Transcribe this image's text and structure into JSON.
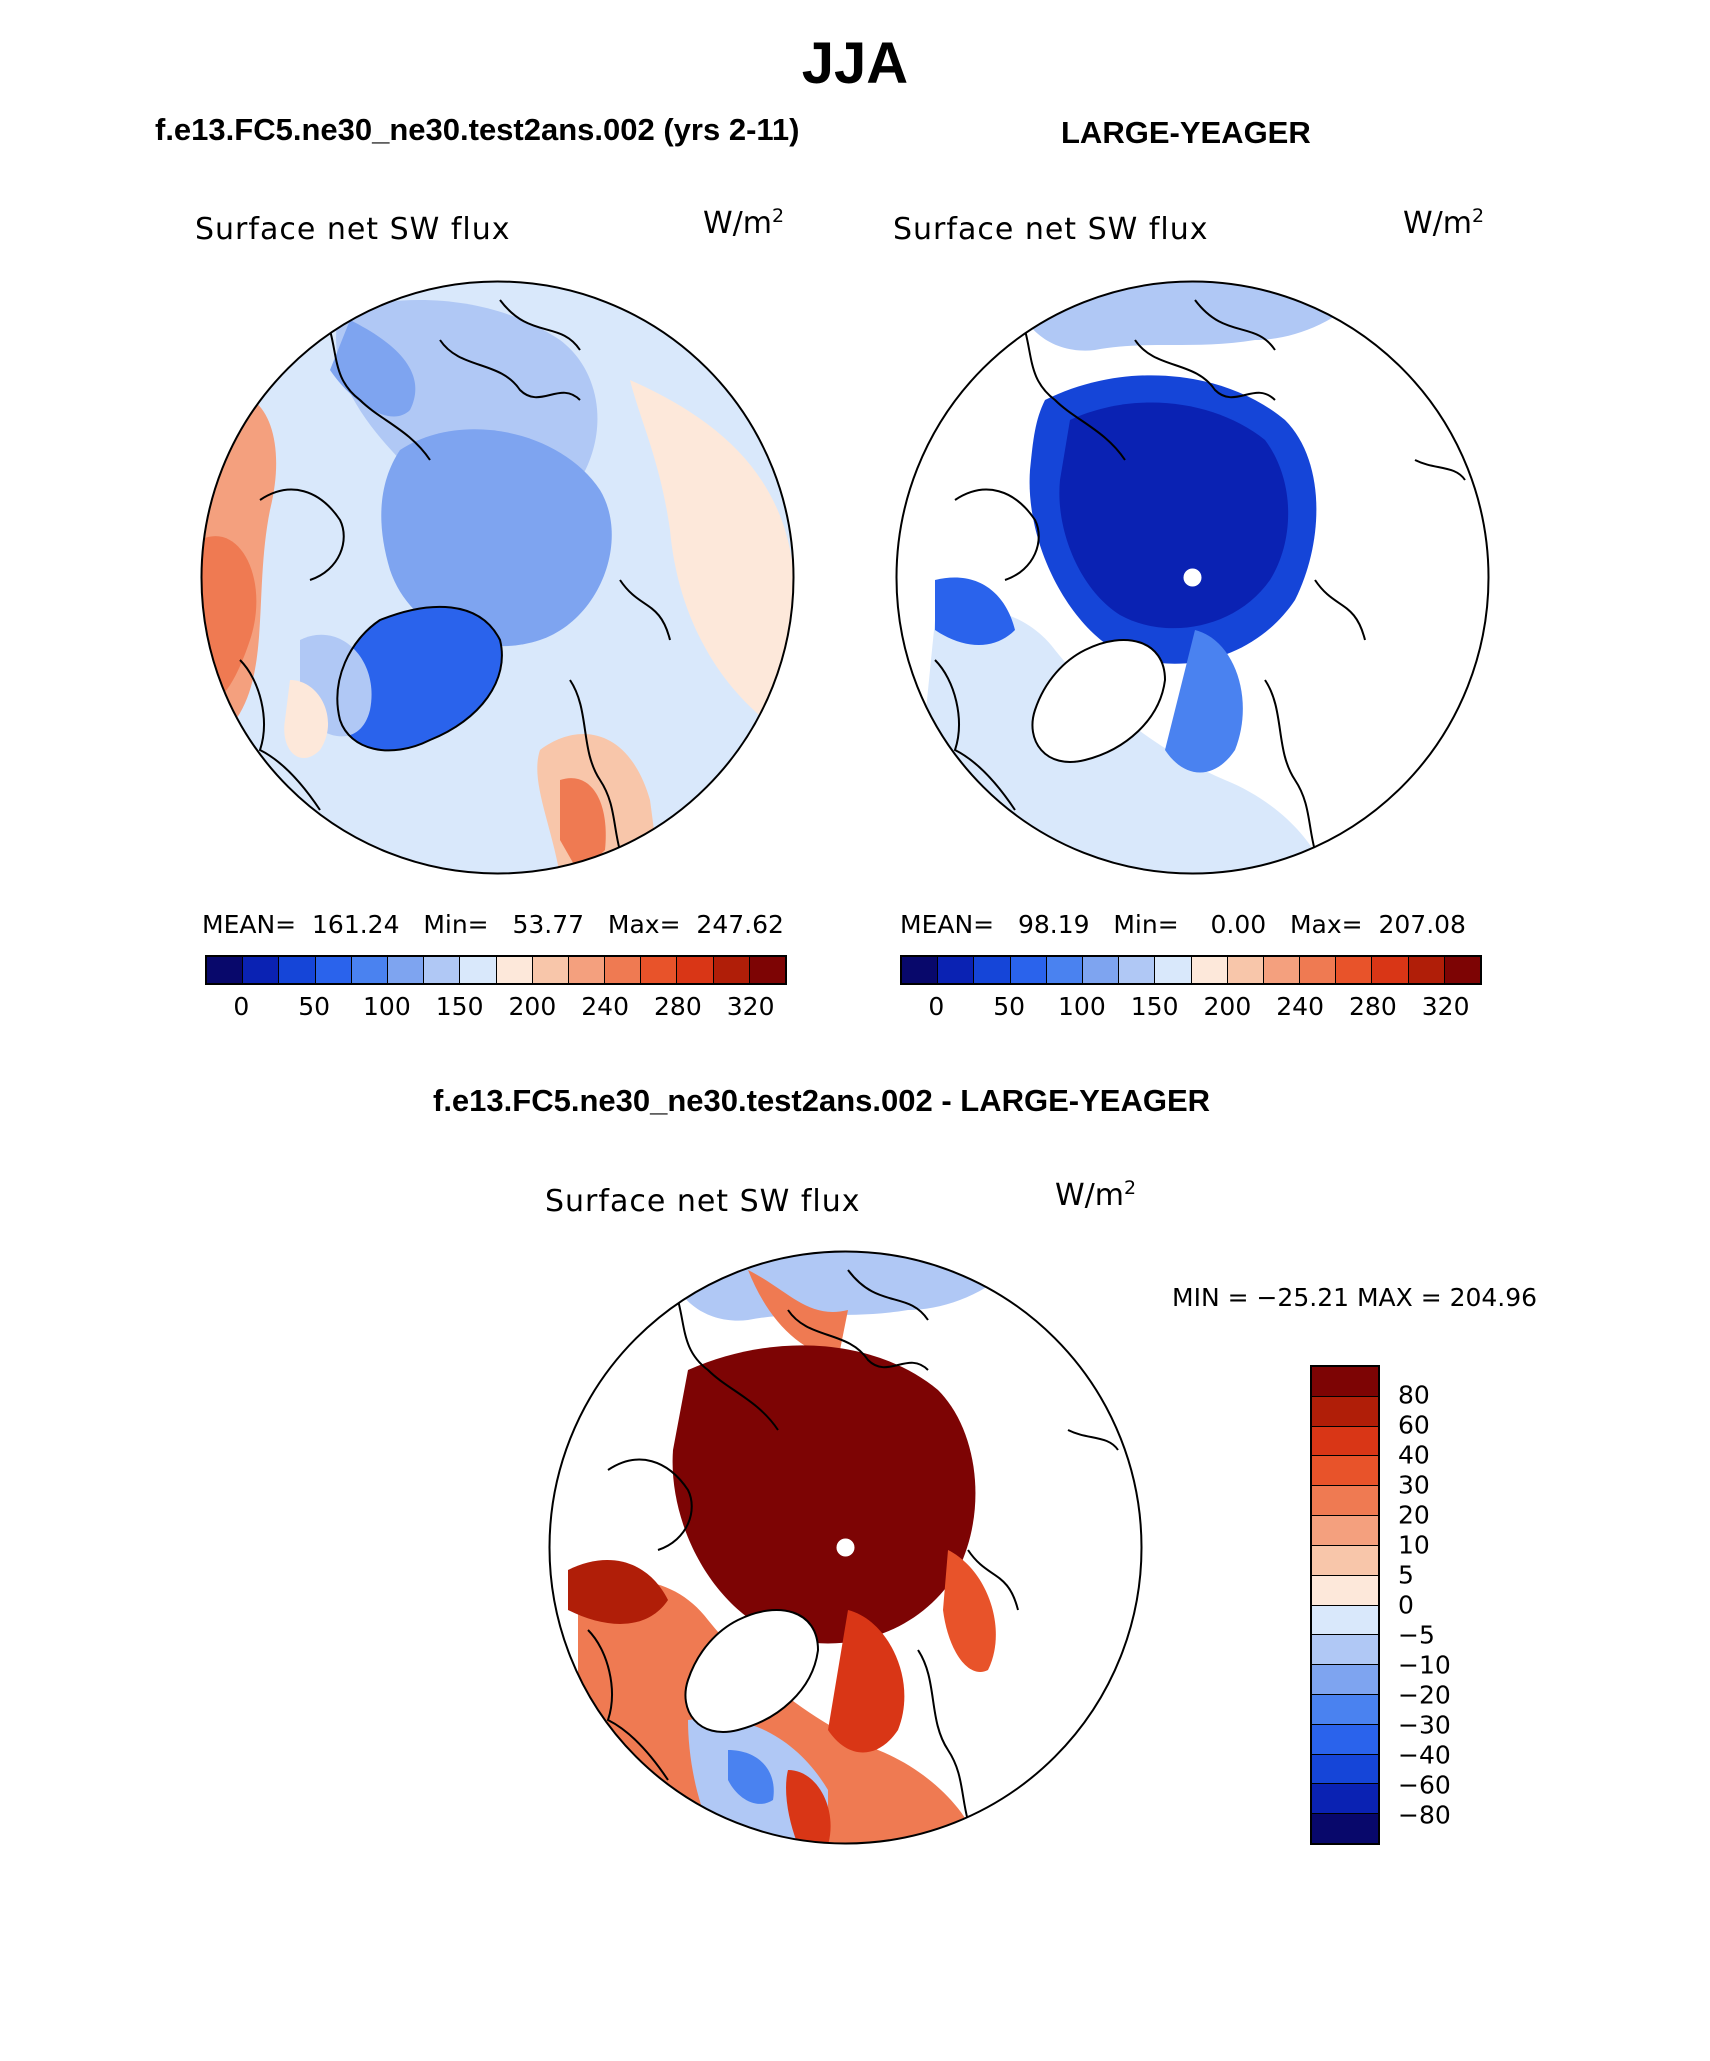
{
  "figure": {
    "title": "JJA"
  },
  "panels": {
    "left": {
      "case_title": "f.e13.FC5.ne30_ne30.test2ans.002 (yrs 2-11)",
      "variable": "Surface net SW flux",
      "units_base": "W/m",
      "units_exp": "2",
      "stats": "MEAN=  161.24   Min=   53.77   Max=  247.62"
    },
    "right": {
      "case_title": "LARGE-YEAGER",
      "variable": "Surface net SW flux",
      "units_base": "W/m",
      "units_exp": "2",
      "stats": "MEAN=   98.19   Min=    0.00   Max=  207.08"
    },
    "diff": {
      "case_title": "f.e13.FC5.ne30_ne30.test2ans.002 - LARGE-YEAGER",
      "variable": "Surface net SW flux",
      "units_base": "W/m",
      "units_exp": "2",
      "stats": "MIN = −25.21 MAX = 204.96"
    }
  },
  "colorbar_abs": {
    "colors": [
      "#08086b",
      "#0a22b3",
      "#1545d8",
      "#2a63ec",
      "#4a82f0",
      "#7ea4f0",
      "#b0c8f5",
      "#d9e8fb",
      "#fde8da",
      "#f8c6aa",
      "#f4a07e",
      "#ef7a52",
      "#e8532a",
      "#d93616",
      "#b01e08",
      "#7d0404"
    ],
    "ticks": [
      "0",
      "50",
      "100",
      "150",
      "200",
      "240",
      "280",
      "320"
    ]
  },
  "colorbar_diff": {
    "colors": [
      "#7d0404",
      "#b01e08",
      "#d93616",
      "#e8532a",
      "#ef7a52",
      "#f4a07e",
      "#f8c6aa",
      "#fde8da",
      "#d9e8fb",
      "#b0c8f5",
      "#7ea4f0",
      "#4a82f0",
      "#2a63ec",
      "#1545d8",
      "#0a22b3",
      "#08086b"
    ],
    "ticks": [
      "80",
      "60",
      "40",
      "30",
      "20",
      "10",
      "5",
      "0",
      "−5",
      "−10",
      "−20",
      "−30",
      "−40",
      "−60",
      "−80"
    ]
  }
}
